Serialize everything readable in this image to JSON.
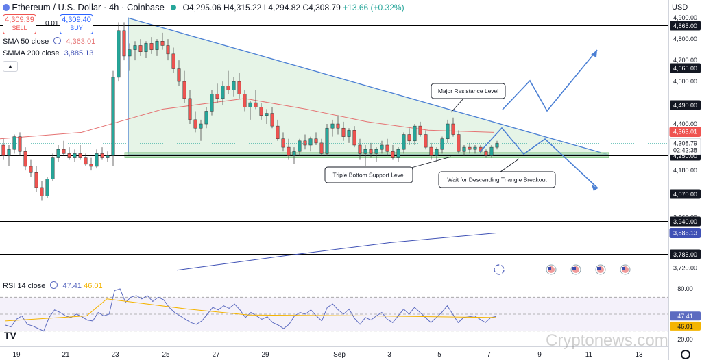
{
  "header": {
    "symbol": "Ethereum / U.S. Dollar · 4h · Coinbase",
    "open": "O4,295.06",
    "high": "H4,315.22",
    "low": "L4,294.82",
    "close": "C4,308.79",
    "change": "+13.66 (+0.32%)",
    "currency": "USD"
  },
  "trade": {
    "sell_price": "4,309.39",
    "sell_label": "SELL",
    "spread": "0.01",
    "buy_price": "4,309.40",
    "buy_label": "BUY"
  },
  "indicators": {
    "sma50_label": "SMA 50 close",
    "sma50_value": "4,363.01",
    "smma200_label": "SMMA 200 close",
    "smma200_value": "3,885.13",
    "rsi_label": "RSI 14 close",
    "rsi_value": "47.41",
    "rsi_ma_value": "46.01"
  },
  "colors": {
    "up": "#26a69a",
    "down": "#ef5350",
    "sma50": "#e57373",
    "smma200": "#3f51b5",
    "rsi": "#5c6bc0",
    "rsi_ma": "#f4b400",
    "triangle_fill": "#c8e6c9",
    "pattern_line": "#4a7fd4"
  },
  "watermark": "Cryptonews.com",
  "chart_data": [
    {
      "type": "candlestick",
      "title": "Ethereum / U.S. Dollar · 4h · Coinbase",
      "ylim": [
        3680,
        4920
      ],
      "price_ticks": [
        "4,900.00",
        "4,800.00",
        "4,700.00",
        "4,600.00",
        "4,400.00",
        "4,180.00",
        "3,960.00",
        "3,720.00"
      ],
      "x_ticks": [
        "19",
        "21",
        "23",
        "25",
        "27",
        "29",
        "Sep",
        "3",
        "5",
        "7",
        "9",
        "11",
        "13"
      ],
      "levels": [
        {
          "value": 4865,
          "label": "4,865.00"
        },
        {
          "value": 4665,
          "label": "4,665.00"
        },
        {
          "value": 4490,
          "label": "4,490.00"
        },
        {
          "value": 4250,
          "label": "4,250.00"
        },
        {
          "value": 4070,
          "label": "4,070.00"
        },
        {
          "value": 3940,
          "label": "3,940.00"
        },
        {
          "value": 3785,
          "label": "3,785.00"
        }
      ],
      "markers": [
        {
          "value": 4363.01,
          "label": "4,363.01",
          "kind": "sma50"
        },
        {
          "value": 4308.79,
          "label": "4,308.79",
          "sub": "02:42:38",
          "kind": "last"
        },
        {
          "value": 3885.13,
          "label": "3,885.13",
          "kind": "smma200"
        }
      ],
      "candles": [
        [
          4300,
          4330,
          4230,
          4250
        ],
        [
          4250,
          4300,
          4200,
          4280
        ],
        [
          4280,
          4350,
          4260,
          4340
        ],
        [
          4340,
          4360,
          4250,
          4270
        ],
        [
          4270,
          4290,
          4180,
          4200
        ],
        [
          4200,
          4230,
          4150,
          4170
        ],
        [
          4170,
          4200,
          4080,
          4100
        ],
        [
          4100,
          4130,
          4040,
          4060
        ],
        [
          4060,
          4150,
          4050,
          4140
        ],
        [
          4140,
          4260,
          4130,
          4240
        ],
        [
          4240,
          4300,
          4220,
          4280
        ],
        [
          4280,
          4320,
          4250,
          4260
        ],
        [
          4260,
          4290,
          4230,
          4240
        ],
        [
          4240,
          4280,
          4220,
          4260
        ],
        [
          4260,
          4300,
          4230,
          4240
        ],
        [
          4240,
          4260,
          4200,
          4210
        ],
        [
          4210,
          4240,
          4180,
          4200
        ],
        [
          4200,
          4280,
          4190,
          4260
        ],
        [
          4260,
          4290,
          4230,
          4240
        ],
        [
          4240,
          4270,
          4220,
          4250
        ],
        [
          4250,
          4650,
          4200,
          4620
        ],
        [
          4620,
          4880,
          4600,
          4840
        ],
        [
          4840,
          4880,
          4700,
          4720
        ],
        [
          4720,
          4780,
          4650,
          4750
        ],
        [
          4750,
          4790,
          4700,
          4770
        ],
        [
          4770,
          4800,
          4720,
          4740
        ],
        [
          4740,
          4790,
          4710,
          4780
        ],
        [
          4780,
          4810,
          4730,
          4750
        ],
        [
          4750,
          4800,
          4720,
          4790
        ],
        [
          4790,
          4830,
          4750,
          4770
        ],
        [
          4770,
          4800,
          4700,
          4730
        ],
        [
          4730,
          4760,
          4640,
          4660
        ],
        [
          4660,
          4700,
          4580,
          4600
        ],
        [
          4600,
          4650,
          4500,
          4520
        ],
        [
          4520,
          4560,
          4400,
          4420
        ],
        [
          4420,
          4460,
          4360,
          4380
        ],
        [
          4380,
          4420,
          4320,
          4400
        ],
        [
          4400,
          4480,
          4380,
          4460
        ],
        [
          4460,
          4560,
          4440,
          4540
        ],
        [
          4540,
          4590,
          4500,
          4520
        ],
        [
          4520,
          4600,
          4490,
          4580
        ],
        [
          4580,
          4650,
          4540,
          4560
        ],
        [
          4560,
          4620,
          4530,
          4600
        ],
        [
          4600,
          4640,
          4520,
          4540
        ],
        [
          4540,
          4560,
          4460,
          4480
        ],
        [
          4480,
          4510,
          4420,
          4500
        ],
        [
          4500,
          4560,
          4470,
          4480
        ],
        [
          4480,
          4500,
          4420,
          4440
        ],
        [
          4440,
          4470,
          4400,
          4450
        ],
        [
          4450,
          4480,
          4380,
          4390
        ],
        [
          4390,
          4420,
          4320,
          4330
        ],
        [
          4330,
          4360,
          4270,
          4290
        ],
        [
          4290,
          4330,
          4230,
          4250
        ],
        [
          4250,
          4290,
          4210,
          4270
        ],
        [
          4270,
          4330,
          4250,
          4320
        ],
        [
          4320,
          4350,
          4280,
          4300
        ],
        [
          4300,
          4340,
          4270,
          4330
        ],
        [
          4330,
          4360,
          4300,
          4310
        ],
        [
          4310,
          4330,
          4250,
          4260
        ],
        [
          4260,
          4400,
          4250,
          4380
        ],
        [
          4380,
          4420,
          4340,
          4400
        ],
        [
          4400,
          4440,
          4350,
          4380
        ],
        [
          4380,
          4410,
          4320,
          4340
        ],
        [
          4340,
          4380,
          4310,
          4370
        ],
        [
          4370,
          4390,
          4290,
          4300
        ],
        [
          4300,
          4330,
          4230,
          4260
        ],
        [
          4260,
          4300,
          4200,
          4280
        ],
        [
          4280,
          4310,
          4240,
          4260
        ],
        [
          4260,
          4290,
          4220,
          4280
        ],
        [
          4280,
          4320,
          4260,
          4300
        ],
        [
          4300,
          4330,
          4250,
          4270
        ],
        [
          4270,
          4300,
          4230,
          4240
        ],
        [
          4240,
          4290,
          4220,
          4280
        ],
        [
          4280,
          4360,
          4260,
          4350
        ],
        [
          4350,
          4380,
          4300,
          4320
        ],
        [
          4320,
          4400,
          4300,
          4390
        ],
        [
          4390,
          4410,
          4340,
          4350
        ],
        [
          4350,
          4370,
          4280,
          4290
        ],
        [
          4290,
          4310,
          4230,
          4250
        ],
        [
          4250,
          4290,
          4220,
          4280
        ],
        [
          4280,
          4340,
          4260,
          4330
        ],
        [
          4330,
          4420,
          4310,
          4400
        ],
        [
          4400,
          4430,
          4340,
          4350
        ],
        [
          4350,
          4370,
          4260,
          4270
        ],
        [
          4270,
          4300,
          4250,
          4290
        ],
        [
          4290,
          4310,
          4260,
          4280
        ],
        [
          4280,
          4300,
          4260,
          4290
        ],
        [
          4290,
          4300,
          4260,
          4270
        ],
        [
          4270,
          4280,
          4240,
          4250
        ],
        [
          4250,
          4300,
          4240,
          4290
        ],
        [
          4290,
          4320,
          4280,
          4309
        ]
      ],
      "sma50": [
        [
          0,
          4330
        ],
        [
          20,
          4360
        ],
        [
          40,
          4470
        ],
        [
          60,
          4520
        ],
        [
          75,
          4470
        ],
        [
          90,
          4410
        ],
        [
          105,
          4370
        ],
        [
          121,
          4360
        ]
      ],
      "smma200": [
        [
          58,
          3710
        ],
        [
          80,
          3780
        ],
        [
          100,
          3840
        ],
        [
          121,
          3885
        ]
      ],
      "rsi": [
        37,
        35,
        44,
        48,
        38,
        36,
        33,
        30,
        46,
        55,
        52,
        48,
        46,
        50,
        47,
        43,
        42,
        52,
        48,
        50,
        78,
        80,
        64,
        70,
        72,
        68,
        72,
        65,
        70,
        67,
        58,
        52,
        48,
        44,
        40,
        38,
        42,
        50,
        58,
        55,
        60,
        57,
        62,
        55,
        46,
        52,
        48,
        44,
        47,
        40,
        37,
        33,
        38,
        48,
        52,
        50,
        55,
        48,
        42,
        58,
        62,
        55,
        50,
        56,
        45,
        38,
        46,
        43,
        48,
        52,
        44,
        40,
        48,
        56,
        50,
        58,
        52,
        46,
        40,
        46,
        52,
        60,
        50,
        40,
        46,
        47,
        48,
        44,
        40,
        46,
        47.41
      ],
      "rsi_ma": [
        [
          0,
          42
        ],
        [
          20,
          48
        ],
        [
          25,
          68
        ],
        [
          45,
          56
        ],
        [
          60,
          49
        ],
        [
          90,
          48
        ],
        [
          121,
          46.01
        ]
      ],
      "rsi_levels": [
        70,
        50,
        30
      ],
      "rsi_ticks": [
        "80.00",
        "20.00"
      ],
      "annotations": [
        {
          "text": "Major Resistance Level"
        },
        {
          "text": "Triple Bottom Support Level"
        },
        {
          "text": "Wait for Descending Triangle Breakout"
        }
      ]
    }
  ]
}
